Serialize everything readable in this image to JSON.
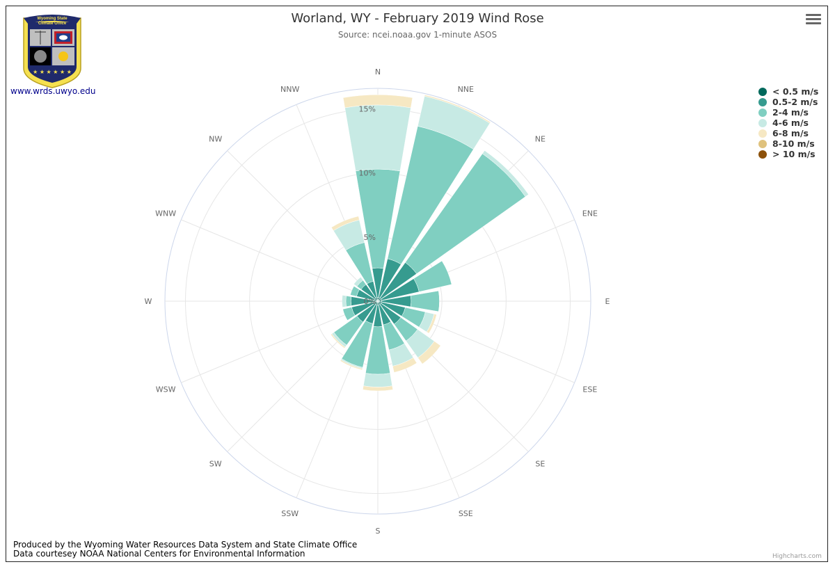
{
  "header": {
    "title": "Worland, WY - February 2019 Wind Rose",
    "subtitle": "Source: ncei.noaa.gov 1-minute ASOS"
  },
  "logo": {
    "top_text": "Wyoming State",
    "bottom_text": "Climate Office",
    "url": "www.wrds.uwyo.edu"
  },
  "footer": {
    "line1": "Produced by the Wyoming Water Resources Data System and State Climate Office",
    "line2": "Data courtesey NOAA National Centers for Environmental Information",
    "credit": "Highcharts.com"
  },
  "legend": {
    "items": [
      {
        "label": "< 0.5 m/s",
        "color": "#00695c"
      },
      {
        "label": "0.5-2 m/s",
        "color": "#369b8f"
      },
      {
        "label": "2-4 m/s",
        "color": "#80cfc1"
      },
      {
        "label": "4-6 m/s",
        "color": "#c7eae4"
      },
      {
        "label": "6-8 m/s",
        "color": "#f6e8c3"
      },
      {
        "label": "8-10 m/s",
        "color": "#dfc27d"
      },
      {
        "label": "> 10 m/s",
        "color": "#8c510a"
      }
    ]
  },
  "chart_data": {
    "type": "windrose",
    "title": "Worland, WY - February 2019 Wind Rose",
    "subtitle": "Source: ncei.noaa.gov 1-minute ASOS",
    "categories": [
      "N",
      "NNE",
      "NE",
      "ENE",
      "E",
      "ESE",
      "SE",
      "SSE",
      "S",
      "SSW",
      "SW",
      "WSW",
      "W",
      "WNW",
      "NW",
      "NNW"
    ],
    "radial_ticks": [
      {
        "value": 0,
        "label": "0%"
      },
      {
        "value": 5,
        "label": "5%"
      },
      {
        "value": 10,
        "label": "10%"
      },
      {
        "value": 15,
        "label": "15%"
      }
    ],
    "rmax": 16.6,
    "stacked": true,
    "series": [
      {
        "name": "< 0.5 m/s",
        "color": "#00695c",
        "values": [
          0.3,
          0.3,
          0.3,
          0.3,
          0.3,
          0.3,
          0.3,
          0.3,
          0.3,
          0.3,
          0.3,
          0.3,
          0.3,
          0.3,
          0.3,
          0.3
        ]
      },
      {
        "name": "0.5-2 m/s",
        "color": "#369b8f",
        "values": [
          2.3,
          3.1,
          3.4,
          3.0,
          2.3,
          1.9,
          1.9,
          1.6,
          1.7,
          1.5,
          1.7,
          1.8,
          1.8,
          1.4,
          1.3,
          1.3
        ]
      },
      {
        "name": "2-4 m/s",
        "color": "#80cfc1",
        "values": [
          7.7,
          10.6,
          10.4,
          2.6,
          2.2,
          1.6,
          1.6,
          2.0,
          3.7,
          3.5,
          2.2,
          0.7,
          0.4,
          0.5,
          0.4,
          3.1
        ]
      },
      {
        "name": "4-6 m/s",
        "color": "#c7eae4",
        "values": [
          5.0,
          2.4,
          0.3,
          0.0,
          0.0,
          0.7,
          1.6,
          1.3,
          1.0,
          0.1,
          0.2,
          0.0,
          0.3,
          0.0,
          0.3,
          1.8
        ]
      },
      {
        "name": "6-8 m/s",
        "color": "#f6e8c3",
        "values": [
          0.8,
          0.1,
          0.0,
          0.0,
          0.0,
          0.2,
          0.6,
          0.5,
          0.3,
          0.1,
          0.1,
          0.0,
          0.0,
          0.0,
          0.0,
          0.3
        ]
      },
      {
        "name": "8-10 m/s",
        "color": "#dfc27d",
        "values": [
          0,
          0,
          0,
          0,
          0,
          0,
          0,
          0,
          0,
          0,
          0,
          0,
          0,
          0,
          0,
          0
        ]
      },
      {
        "name": "> 10 m/s",
        "color": "#8c510a",
        "values": [
          0,
          0,
          0,
          0,
          0,
          0,
          0,
          0,
          0,
          0,
          0,
          0,
          0,
          0,
          0,
          0
        ]
      }
    ]
  }
}
